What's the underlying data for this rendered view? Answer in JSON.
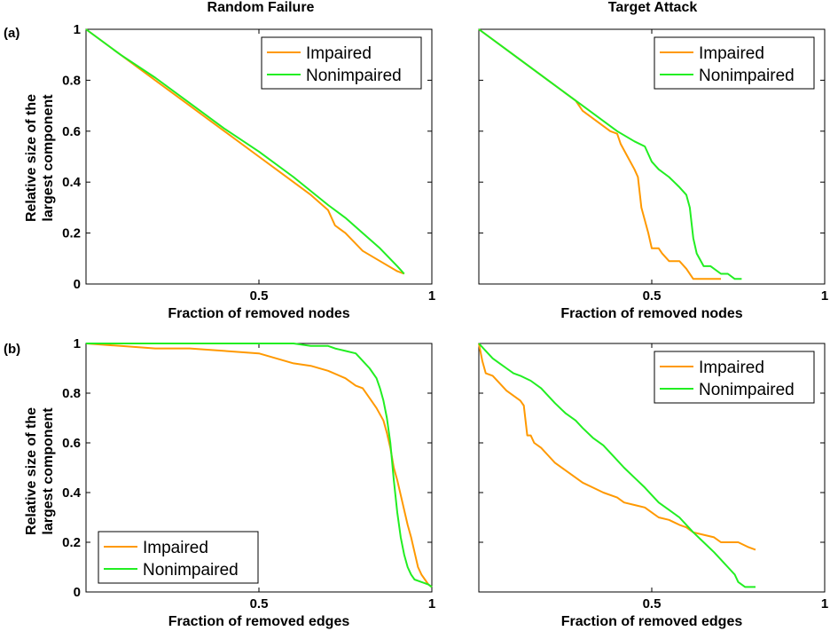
{
  "figure": {
    "panel_labels": [
      "(a)",
      "(b)"
    ],
    "column_titles": [
      "Random Failure",
      "Target Attack"
    ],
    "ylabel_line1": "Relative size of the",
    "ylabel_line2": "largest component"
  },
  "colors": {
    "impaired": "#ff9900",
    "nonimpaired": "#22ee22"
  },
  "chart_data": [
    {
      "type": "line",
      "id": "a-random",
      "title": "Random Failure",
      "xlabel": "Fraction of removed nodes",
      "ylabel": "Relative size of the largest component",
      "xlim": [
        0,
        1
      ],
      "ylim": [
        0,
        1
      ],
      "xticks": [
        0.5,
        1
      ],
      "xtick_labels": [
        "0.5",
        "1"
      ],
      "yticks": [
        0,
        0.2,
        0.4,
        0.6,
        0.8,
        1
      ],
      "ytick_labels": [
        "0",
        "0.2",
        "0.4",
        "0.6",
        "0.8",
        "1"
      ],
      "legend_position": "top-right",
      "series": [
        {
          "name": "Impaired",
          "color": "#ff9900",
          "x": [
            0,
            0.1,
            0.2,
            0.3,
            0.4,
            0.5,
            0.55,
            0.6,
            0.65,
            0.7,
            0.72,
            0.75,
            0.8,
            0.85,
            0.9,
            0.92
          ],
          "y": [
            1,
            0.9,
            0.8,
            0.7,
            0.6,
            0.5,
            0.45,
            0.4,
            0.35,
            0.29,
            0.23,
            0.2,
            0.13,
            0.09,
            0.05,
            0.04
          ]
        },
        {
          "name": "Nonimpaired",
          "color": "#22ee22",
          "x": [
            0,
            0.1,
            0.2,
            0.3,
            0.4,
            0.5,
            0.6,
            0.7,
            0.75,
            0.8,
            0.85,
            0.9,
            0.92
          ],
          "y": [
            1,
            0.9,
            0.81,
            0.71,
            0.61,
            0.52,
            0.42,
            0.31,
            0.26,
            0.2,
            0.14,
            0.07,
            0.04
          ]
        }
      ]
    },
    {
      "type": "line",
      "id": "a-target",
      "title": "Target Attack",
      "xlabel": "Fraction of removed nodes",
      "ylabel": "",
      "xlim": [
        0,
        1
      ],
      "ylim": [
        0,
        1
      ],
      "xticks": [
        0.5,
        1
      ],
      "xtick_labels": [
        "0.5",
        "1"
      ],
      "yticks": [
        0,
        0.2,
        0.4,
        0.6,
        0.8,
        1
      ],
      "ytick_labels": [],
      "legend_position": "top-right",
      "series": [
        {
          "name": "Impaired",
          "color": "#ff9900",
          "x": [
            0,
            0.1,
            0.2,
            0.25,
            0.28,
            0.3,
            0.32,
            0.35,
            0.38,
            0.4,
            0.41,
            0.43,
            0.45,
            0.46,
            0.47,
            0.48,
            0.49,
            0.5,
            0.52,
            0.53,
            0.55,
            0.57,
            0.58,
            0.6,
            0.62,
            0.65,
            0.7
          ],
          "y": [
            1,
            0.9,
            0.8,
            0.75,
            0.72,
            0.68,
            0.66,
            0.63,
            0.6,
            0.59,
            0.55,
            0.5,
            0.45,
            0.42,
            0.3,
            0.25,
            0.2,
            0.14,
            0.14,
            0.12,
            0.09,
            0.09,
            0.09,
            0.06,
            0.02,
            0.02,
            0.02
          ]
        },
        {
          "name": "Nonimpaired",
          "color": "#22ee22",
          "x": [
            0,
            0.1,
            0.2,
            0.25,
            0.3,
            0.35,
            0.4,
            0.45,
            0.48,
            0.5,
            0.52,
            0.55,
            0.58,
            0.6,
            0.61,
            0.62,
            0.63,
            0.65,
            0.67,
            0.7,
            0.72,
            0.74,
            0.76
          ],
          "y": [
            1,
            0.9,
            0.8,
            0.75,
            0.7,
            0.65,
            0.6,
            0.56,
            0.54,
            0.48,
            0.45,
            0.42,
            0.38,
            0.35,
            0.3,
            0.18,
            0.12,
            0.07,
            0.07,
            0.04,
            0.04,
            0.02,
            0.02
          ]
        }
      ]
    },
    {
      "type": "line",
      "id": "b-random",
      "title": "",
      "xlabel": "Fraction of removed edges",
      "ylabel": "Relative size of the largest component",
      "xlim": [
        0,
        1
      ],
      "ylim": [
        0,
        1
      ],
      "xticks": [
        0.5,
        1
      ],
      "xtick_labels": [
        "0.5",
        "1"
      ],
      "yticks": [
        0,
        0.2,
        0.4,
        0.6,
        0.8,
        1
      ],
      "ytick_labels": [
        "0",
        "0.2",
        "0.4",
        "0.6",
        "0.8",
        "1"
      ],
      "legend_position": "bottom-left",
      "series": [
        {
          "name": "Impaired",
          "color": "#ff9900",
          "x": [
            0,
            0.1,
            0.2,
            0.3,
            0.4,
            0.5,
            0.55,
            0.6,
            0.65,
            0.7,
            0.75,
            0.78,
            0.8,
            0.82,
            0.84,
            0.86,
            0.87,
            0.88,
            0.89,
            0.9,
            0.91,
            0.92,
            0.93,
            0.94,
            0.95,
            0.96,
            0.97,
            0.98,
            0.99,
            1.0
          ],
          "y": [
            1,
            0.99,
            0.98,
            0.98,
            0.97,
            0.96,
            0.94,
            0.92,
            0.91,
            0.89,
            0.86,
            0.83,
            0.82,
            0.78,
            0.74,
            0.69,
            0.64,
            0.58,
            0.5,
            0.45,
            0.39,
            0.33,
            0.27,
            0.22,
            0.16,
            0.1,
            0.07,
            0.05,
            0.03,
            0.02
          ]
        },
        {
          "name": "Nonimpaired",
          "color": "#22ee22",
          "x": [
            0,
            0.1,
            0.2,
            0.3,
            0.4,
            0.5,
            0.6,
            0.65,
            0.7,
            0.72,
            0.75,
            0.78,
            0.8,
            0.82,
            0.84,
            0.85,
            0.86,
            0.87,
            0.88,
            0.89,
            0.9,
            0.91,
            0.92,
            0.93,
            0.94,
            0.95,
            0.97,
            0.99,
            1.0
          ],
          "y": [
            1,
            1,
            1,
            1,
            1,
            1,
            1,
            0.99,
            0.99,
            0.98,
            0.97,
            0.96,
            0.93,
            0.9,
            0.86,
            0.82,
            0.77,
            0.7,
            0.6,
            0.45,
            0.32,
            0.22,
            0.15,
            0.1,
            0.07,
            0.05,
            0.04,
            0.03,
            0.02
          ]
        }
      ]
    },
    {
      "type": "line",
      "id": "b-target",
      "title": "",
      "xlabel": "Fraction of removed edges",
      "ylabel": "",
      "xlim": [
        0,
        1
      ],
      "ylim": [
        0,
        1
      ],
      "xticks": [
        0.5,
        1
      ],
      "xtick_labels": [
        "0.5",
        "1"
      ],
      "yticks": [
        0,
        0.2,
        0.4,
        0.6,
        0.8,
        1
      ],
      "ytick_labels": [],
      "legend_position": "top-right",
      "series": [
        {
          "name": "Impaired",
          "color": "#ff9900",
          "x": [
            0,
            0.01,
            0.02,
            0.04,
            0.06,
            0.08,
            0.1,
            0.12,
            0.13,
            0.14,
            0.15,
            0.16,
            0.18,
            0.2,
            0.22,
            0.25,
            0.28,
            0.3,
            0.33,
            0.36,
            0.4,
            0.42,
            0.45,
            0.48,
            0.5,
            0.52,
            0.55,
            0.58,
            0.6,
            0.62,
            0.65,
            0.68,
            0.7,
            0.72,
            0.75,
            0.78,
            0.8
          ],
          "y": [
            1,
            0.93,
            0.88,
            0.87,
            0.84,
            0.81,
            0.79,
            0.77,
            0.75,
            0.63,
            0.63,
            0.6,
            0.58,
            0.55,
            0.52,
            0.49,
            0.46,
            0.44,
            0.42,
            0.4,
            0.38,
            0.36,
            0.35,
            0.34,
            0.32,
            0.3,
            0.29,
            0.27,
            0.26,
            0.24,
            0.23,
            0.22,
            0.2,
            0.2,
            0.2,
            0.18,
            0.17
          ]
        },
        {
          "name": "Nonimpaired",
          "color": "#22ee22",
          "x": [
            0,
            0.02,
            0.04,
            0.06,
            0.08,
            0.1,
            0.12,
            0.15,
            0.18,
            0.2,
            0.22,
            0.25,
            0.28,
            0.3,
            0.33,
            0.36,
            0.38,
            0.4,
            0.42,
            0.45,
            0.48,
            0.5,
            0.52,
            0.55,
            0.58,
            0.6,
            0.62,
            0.65,
            0.68,
            0.7,
            0.72,
            0.74,
            0.75,
            0.77,
            0.8
          ],
          "y": [
            1,
            0.97,
            0.94,
            0.92,
            0.9,
            0.88,
            0.87,
            0.85,
            0.82,
            0.79,
            0.76,
            0.72,
            0.69,
            0.66,
            0.62,
            0.59,
            0.56,
            0.53,
            0.5,
            0.46,
            0.42,
            0.39,
            0.36,
            0.33,
            0.3,
            0.27,
            0.24,
            0.2,
            0.16,
            0.13,
            0.1,
            0.07,
            0.04,
            0.02,
            0.02
          ]
        }
      ]
    }
  ]
}
